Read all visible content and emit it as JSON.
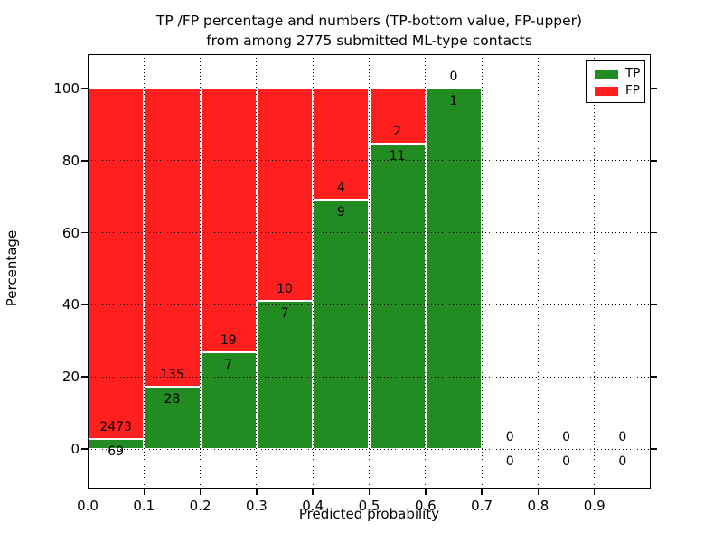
{
  "title": {
    "line1": "TP /FP percentage and numbers (TP-bottom value, FP-upper)",
    "line2": "from among 2775 submitted ML-type contacts"
  },
  "axes": {
    "ylabel": "Percentage",
    "xlabel": "Predicted probability",
    "ytick_labels": [
      "0",
      "20",
      "40",
      "60",
      "80",
      "100"
    ],
    "xtick_labels": [
      "0.0",
      "0.1",
      "0.2",
      "0.3",
      "0.4",
      "0.5",
      "0.6",
      "0.7",
      "0.8",
      "0.9"
    ]
  },
  "legend": {
    "items": [
      {
        "label": "TP",
        "color": "#228b22"
      },
      {
        "label": "FP",
        "color": "#ff1f1f"
      }
    ],
    "position": "upper right"
  },
  "chart_data": {
    "type": "bar",
    "stacked": true,
    "normalized_to_percent": true,
    "title": "TP /FP percentage and numbers (TP-bottom value, FP-upper) from among 2775 submitted ML-type contacts",
    "xlabel": "Predicted probability",
    "ylabel": "Percentage",
    "xlim": [
      0.0,
      1.0
    ],
    "ylim": [
      -11,
      110
    ],
    "yticks": [
      0,
      20,
      40,
      60,
      80,
      100
    ],
    "xticks": [
      0.0,
      0.1,
      0.2,
      0.3,
      0.4,
      0.5,
      0.6,
      0.7,
      0.8,
      0.9
    ],
    "grid": "dotted",
    "bin_width": 0.1,
    "bin_starts": [
      0.0,
      0.1,
      0.2,
      0.3,
      0.4,
      0.5,
      0.6,
      0.7,
      0.8,
      0.9
    ],
    "series": [
      {
        "name": "TP",
        "color": "#228b22",
        "counts": [
          69,
          28,
          7,
          7,
          9,
          11,
          1,
          0,
          0,
          0
        ]
      },
      {
        "name": "FP",
        "color": "#ff1f1f",
        "counts": [
          2473,
          135,
          19,
          10,
          4,
          2,
          0,
          0,
          0,
          0
        ]
      }
    ],
    "tp_percent_per_bin": [
      2.71,
      17.18,
      26.92,
      41.18,
      69.23,
      84.62,
      100.0,
      0,
      0,
      0
    ],
    "total_submitted": 2775
  }
}
